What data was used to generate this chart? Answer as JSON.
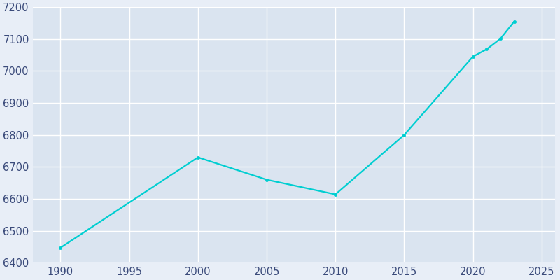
{
  "years": [
    1990,
    2000,
    2005,
    2010,
    2015,
    2020,
    2021,
    2022,
    2023
  ],
  "population": [
    6447,
    6730,
    6660,
    6614,
    6800,
    7045,
    7068,
    7101,
    7155
  ],
  "line_color": "#00CED1",
  "bg_color": "#E8EEF7",
  "plot_bg_color": "#DAE4F0",
  "grid_color": "#FFFFFF",
  "tick_color": "#3A4A7A",
  "xlim": [
    1988,
    2026
  ],
  "ylim": [
    6400,
    7200
  ],
  "xticks": [
    1990,
    1995,
    2000,
    2005,
    2010,
    2015,
    2020,
    2025
  ],
  "yticks": [
    6400,
    6500,
    6600,
    6700,
    6800,
    6900,
    7000,
    7100,
    7200
  ],
  "line_width": 1.6,
  "marker_size": 3,
  "tick_fontsize": 10.5
}
